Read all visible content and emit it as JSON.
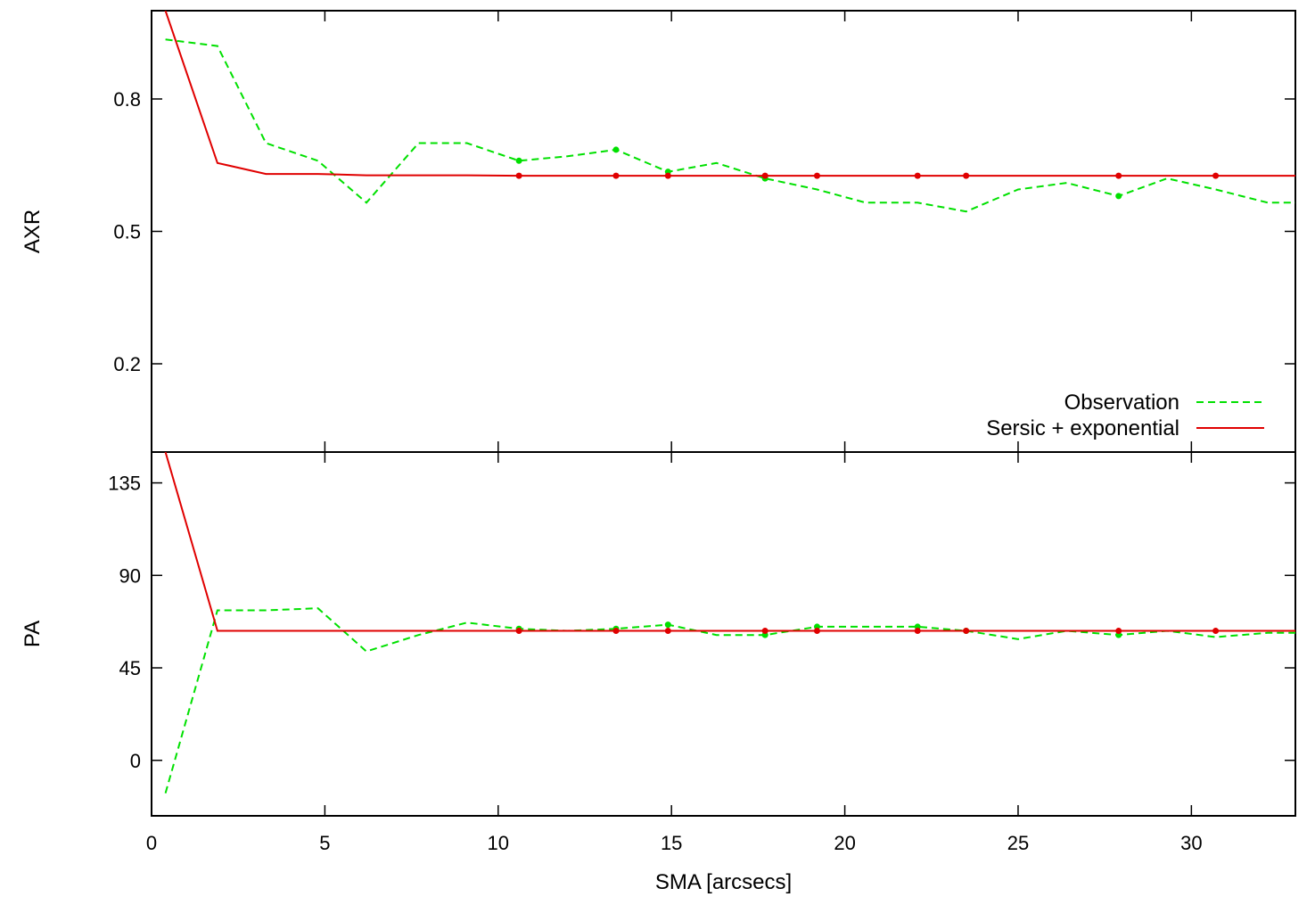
{
  "chart_data": {
    "type": "line",
    "xlabel": "SMA [arcsecs]",
    "xlim": [
      0,
      33
    ],
    "xticks": [
      "0",
      "5",
      "10",
      "15",
      "20",
      "25",
      "30"
    ],
    "colors": {
      "observation": "#00e000",
      "model": "#e00000"
    },
    "legend": {
      "placement": "bottom-right of upper panel",
      "entries": [
        "Observation",
        "Sersic + exponential"
      ]
    },
    "panels": [
      {
        "ylabel": "AXR",
        "ylim": [
          0.0,
          1.0
        ],
        "yticks": [
          "0.2",
          "0.5",
          "0.8"
        ],
        "series": [
          {
            "name": "Observation",
            "x": [
              0.4,
              1.9,
              3.3,
              4.8,
              6.2,
              7.7,
              9.1,
              10.6,
              12.0,
              13.4,
              14.9,
              16.3,
              17.7,
              19.2,
              20.6,
              22.1,
              23.5,
              25.0,
              26.4,
              27.9,
              29.3,
              30.7,
              32.2,
              33.0
            ],
            "y": [
              0.935,
              0.92,
              0.7,
              0.66,
              0.565,
              0.7,
              0.7,
              0.66,
              0.67,
              0.685,
              0.635,
              0.655,
              0.62,
              0.595,
              0.565,
              0.565,
              0.545,
              0.595,
              0.61,
              0.58,
              0.62,
              0.595,
              0.565,
              0.565
            ],
            "markers_x": [
              10.6,
              13.4,
              14.9,
              17.7,
              27.9
            ]
          },
          {
            "name": "Sersic + exponential",
            "x": [
              0.4,
              1.9,
              3.3,
              4.8,
              6.2,
              7.7,
              9.1,
              10.6,
              12.0,
              13.4,
              14.9,
              16.3,
              17.7,
              19.2,
              20.6,
              22.1,
              23.5,
              25.0,
              26.4,
              27.9,
              29.3,
              30.7,
              32.2,
              33.0
            ],
            "y": [
              1.0,
              0.655,
              0.63,
              0.63,
              0.627,
              0.627,
              0.627,
              0.626,
              0.626,
              0.626,
              0.626,
              0.626,
              0.626,
              0.626,
              0.626,
              0.626,
              0.626,
              0.626,
              0.626,
              0.626,
              0.626,
              0.626,
              0.626,
              0.626
            ],
            "markers_x": [
              10.6,
              13.4,
              14.9,
              17.7,
              19.2,
              22.1,
              23.5,
              27.9,
              30.7
            ]
          }
        ]
      },
      {
        "ylabel": "PA",
        "ylim": [
          -27,
          150
        ],
        "yticks": [
          "0",
          "45",
          "90",
          "135"
        ],
        "series": [
          {
            "name": "Observation",
            "x": [
              0.4,
              1.9,
              3.3,
              4.8,
              6.2,
              7.7,
              9.1,
              10.6,
              12.0,
              13.4,
              14.9,
              16.3,
              17.7,
              19.2,
              20.6,
              22.1,
              23.5,
              25.0,
              26.4,
              27.9,
              29.3,
              30.7,
              32.2,
              33.0
            ],
            "y": [
              -16,
              73,
              73,
              74,
              53,
              61,
              67,
              64,
              63,
              64,
              66,
              61,
              61,
              65,
              65,
              65,
              63,
              59,
              63,
              61,
              63,
              60,
              62,
              62
            ],
            "markers_x": [
              10.6,
              13.4,
              14.9,
              17.7,
              19.2,
              22.1,
              23.5,
              27.9
            ]
          },
          {
            "name": "Sersic + exponential",
            "x": [
              0.4,
              1.9,
              3.3,
              4.8,
              6.2,
              7.7,
              9.1,
              10.6,
              12.0,
              13.4,
              14.9,
              16.3,
              17.7,
              19.2,
              20.6,
              22.1,
              23.5,
              25.0,
              26.4,
              27.9,
              29.3,
              30.7,
              32.2,
              33.0
            ],
            "y": [
              150,
              63,
              63,
              63,
              63,
              63,
              63,
              63,
              63,
              63,
              63,
              63,
              63,
              63,
              63,
              63,
              63,
              63,
              63,
              63,
              63,
              63,
              63,
              63
            ],
            "markers_x": [
              10.6,
              13.4,
              14.9,
              17.7,
              19.2,
              22.1,
              23.5,
              27.9,
              30.7
            ]
          }
        ]
      }
    ]
  }
}
